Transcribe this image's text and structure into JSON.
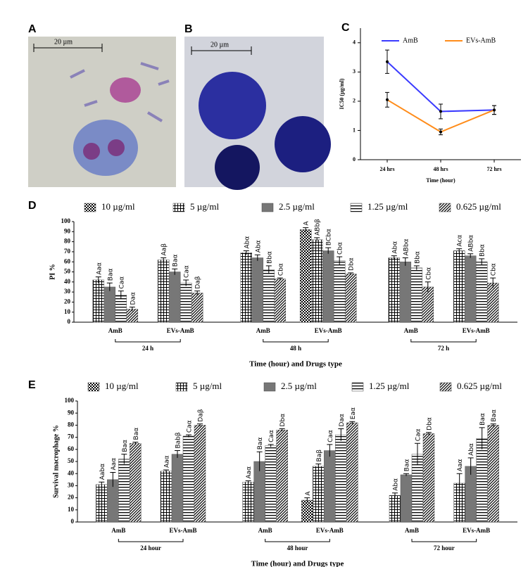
{
  "images": [
    {
      "label": "A",
      "scale_bar": "20 µm"
    },
    {
      "label": "B",
      "scale_bar": "20 µm"
    }
  ],
  "chart_data": [
    {
      "type": "line",
      "label": "C",
      "xlabel": "Time (hour)",
      "ylabel": "IC50 (µg/ml)",
      "categories": [
        "24 hrs",
        "48 hrs",
        "72 hrs"
      ],
      "series": [
        {
          "name": "AmB",
          "color": "#3b3bff",
          "values": [
            3.35,
            1.65,
            1.7
          ],
          "errors": [
            0.4,
            0.25,
            0.15
          ]
        },
        {
          "name": "EVs-AmB",
          "color": "#ff8c1a",
          "values": [
            2.05,
            0.95,
            1.7
          ],
          "errors": [
            0.25,
            0.1,
            0.15
          ]
        }
      ],
      "ylim": [
        0,
        4.5
      ],
      "yticks": [
        0,
        1,
        2,
        3,
        4
      ],
      "legend": "top"
    },
    {
      "type": "bar",
      "label": "D",
      "xlabel": "Time (hour) and Drugs type",
      "ylabel": "PI %",
      "categories": [
        "AmB",
        "EVs-AmB",
        "AmB",
        "EVs-AmB",
        "AmB",
        "EVs-AmB"
      ],
      "groups": [
        "24 h",
        "48 h",
        "72 h"
      ],
      "series": [
        {
          "name": "10 µg/ml",
          "color": "#000000",
          "pattern": "checker",
          "values": [
            null,
            null,
            null,
            92,
            null,
            null
          ],
          "errors": [
            null,
            null,
            null,
            2,
            null,
            null
          ],
          "bar_labels": [
            null,
            null,
            null,
            "A",
            null,
            null
          ]
        },
        {
          "name": "5 µg/ml",
          "color": "#000000",
          "pattern": "grid",
          "values": [
            42,
            62,
            69,
            82,
            64,
            71
          ],
          "errors": [
            3,
            2,
            2,
            2,
            2,
            2
          ],
          "bar_labels": [
            "Aaα",
            "Aaβ",
            "Abα",
            "ABbβ",
            "Abα",
            "Acα"
          ]
        },
        {
          "name": "2.5 µg/ml",
          "color": "#777777",
          "pattern": "solid",
          "values": [
            35,
            50,
            64,
            71,
            60,
            66
          ],
          "errors": [
            4,
            3,
            3,
            3,
            4,
            2
          ],
          "bar_labels": [
            "Baα",
            "Baα",
            "Abα",
            "BCbα",
            "ABbα",
            "ABbα"
          ]
        },
        {
          "name": "1.25 µg/ml",
          "color": "#000000",
          "pattern": "hlines",
          "values": [
            27,
            39,
            52,
            61,
            54,
            60
          ],
          "errors": [
            4,
            3,
            4,
            4,
            2,
            3
          ],
          "bar_labels": [
            "Caα",
            "Caα",
            "Bbα",
            "Cbα",
            "Bbα",
            "Bbα"
          ]
        },
        {
          "name": "0.625 µg/ml",
          "color": "#000000",
          "pattern": "diagonal",
          "values": [
            13,
            29,
            43,
            48,
            35,
            39
          ],
          "errors": [
            2,
            2,
            1,
            1,
            5,
            5
          ],
          "bar_labels": [
            "Daα",
            "Daβ",
            "Cbα",
            "Dbα",
            "Cbα",
            "Cbα"
          ]
        }
      ],
      "ylim": [
        0,
        100
      ],
      "yticks": [
        0,
        10,
        20,
        30,
        40,
        50,
        60,
        70,
        80,
        90,
        100
      ],
      "legend": "top"
    },
    {
      "type": "bar",
      "label": "E",
      "xlabel": "Time (hour) and Drugs type",
      "ylabel": "Survival macrophage %",
      "categories": [
        "AmB",
        "EVs-AmB",
        "AmB",
        "EVs-AmB",
        "AmB",
        "EVs-AmB"
      ],
      "groups": [
        "24 hour",
        "48 hour",
        "72 hour"
      ],
      "series": [
        {
          "name": "10 µg/ml",
          "color": "#000000",
          "pattern": "checker",
          "values": [
            null,
            null,
            null,
            18,
            null,
            null
          ],
          "errors": [
            null,
            null,
            null,
            2,
            null,
            null
          ],
          "bar_labels": [
            null,
            null,
            null,
            "A",
            null,
            null
          ]
        },
        {
          "name": "5 µg/ml",
          "color": "#000000",
          "pattern": "grid",
          "values": [
            31,
            42,
            33,
            46,
            22,
            32
          ],
          "errors": [
            2,
            1,
            1,
            2,
            2,
            8
          ],
          "bar_labels": [
            "Aabα",
            "Aaα",
            "Aaα",
            "Baβ",
            "Abα",
            "Aaα"
          ]
        },
        {
          "name": "2.5 µg/ml",
          "color": "#777777",
          "pattern": "solid",
          "values": [
            35,
            56,
            50,
            59,
            39,
            46
          ],
          "errors": [
            6,
            3,
            8,
            5,
            1,
            7
          ],
          "bar_labels": [
            "Aaα",
            "Babβ",
            "Baα",
            "Caα",
            "Baα",
            "Abα"
          ]
        },
        {
          "name": "1.25 µg/ml",
          "color": "#000000",
          "pattern": "hlines",
          "values": [
            52,
            71,
            63,
            72,
            56,
            69
          ],
          "errors": [
            4,
            1,
            1,
            5,
            9,
            9
          ],
          "bar_labels": [
            "Baα",
            "Caα",
            "Caα",
            "Daα",
            "Caα",
            "Baα"
          ]
        },
        {
          "name": "0.625 µg/ml",
          "color": "#000000",
          "pattern": "diagonal",
          "values": [
            65,
            80,
            76,
            82,
            73,
            80
          ],
          "errors": [
            1,
            1,
            1,
            1,
            1,
            1
          ],
          "bar_labels": [
            "Baα",
            "Daβ",
            "Dbα",
            "Eaα",
            "Dbα",
            "Baα"
          ]
        }
      ],
      "ylim": [
        0,
        100
      ],
      "yticks": [
        0,
        10,
        20,
        30,
        40,
        50,
        60,
        70,
        80,
        90,
        100
      ],
      "legend": "top"
    }
  ]
}
